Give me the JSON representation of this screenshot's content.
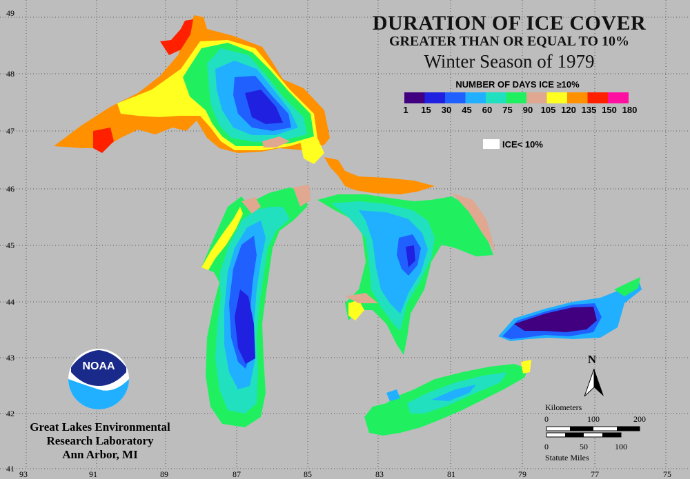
{
  "title": "DURATION OF ICE COVER",
  "subtitle": "GREATER THAN OR EQUAL TO 10%",
  "season": "Winter Season of 1979",
  "legend": {
    "title": "NUMBER OF DAYS ICE ≥10%",
    "colors": [
      "#400080",
      "#2020e0",
      "#2060ff",
      "#20b0ff",
      "#20e0c0",
      "#20f060",
      "#e0a890",
      "#ffff20",
      "#ff9000",
      "#ff2000",
      "#ff10a0"
    ],
    "labels": [
      "1",
      "15",
      "30",
      "45",
      "60",
      "75",
      "90",
      "105",
      "120",
      "135",
      "150",
      "180"
    ],
    "no_ice_label": "ICE< 10%"
  },
  "latitude_labels": [
    "49",
    "48",
    "47",
    "46",
    "45",
    "44",
    "43",
    "42",
    "41"
  ],
  "longitude_labels": [
    "93",
    "91",
    "89",
    "87",
    "85",
    "83",
    "81",
    "79",
    "77",
    "75"
  ],
  "organization": {
    "logo_text": "NOAA",
    "line1": "Great Lakes Environmental",
    "line2": "Research Laboratory",
    "line3": "Ann Arbor, MI"
  },
  "north_label": "N",
  "scale": {
    "km_label": "Kilometers",
    "km_ticks": [
      "0",
      "100",
      "200"
    ],
    "mi_ticks": [
      "0",
      "50",
      "100"
    ],
    "mi_label": "Statute Miles"
  }
}
